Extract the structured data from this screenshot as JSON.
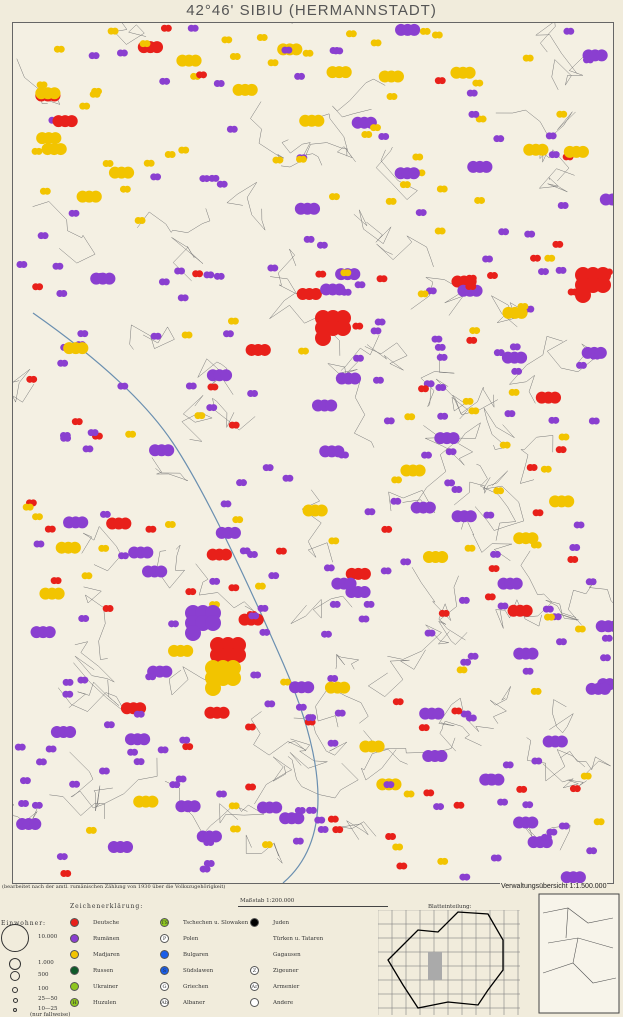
{
  "title": "42°46' SIBIU (HERMANNSTADT)",
  "note": "(bearbeitet nach der amtl. rumänischen Zählung von 1930 über die Volkszugehörigkeit)",
  "legend": {
    "heading": "Zeichenerklärung:",
    "population_heading": "Einwohner:",
    "sizes": [
      "10.000",
      "1.000",
      "500",
      "100",
      "25—50",
      "10—25",
      "(nur fallweise)"
    ],
    "groups": [
      {
        "label": "Deutsche",
        "color": "#e8201a",
        "mark": ""
      },
      {
        "label": "Rumänen",
        "color": "#8a3fd0",
        "mark": ""
      },
      {
        "label": "Madjaren",
        "color": "#f2c400",
        "mark": ""
      },
      {
        "label": "Russen",
        "color": "#0f5a2a",
        "mark": ""
      },
      {
        "label": "Ukrainer",
        "color": "#8ec61e",
        "mark": ""
      },
      {
        "label": "Huzulen",
        "color": "#8ec61e",
        "mark": "H"
      },
      {
        "label": "Tschechen u. Slowaken",
        "color": "#8ec61e",
        "mark": "TS"
      },
      {
        "label": "Polen",
        "color": "#ffffff",
        "mark": "P"
      },
      {
        "label": "Bulgaren",
        "color": "#1a5ee8",
        "mark": ""
      },
      {
        "label": "Südslawen",
        "color": "#1a5ee8",
        "mark": "S"
      },
      {
        "label": "Griechen",
        "color": "#ffffff",
        "mark": "G"
      },
      {
        "label": "Albaner",
        "color": "#ffffff",
        "mark": "Ab"
      },
      {
        "label": "Juden",
        "color": "#000000",
        "mark": ""
      },
      {
        "label": "Türken u. Tataren",
        "color": "",
        "mark": ""
      },
      {
        "label": "Gagausen",
        "color": "",
        "mark": ""
      },
      {
        "label": "Zigeuner",
        "color": "#ffffff",
        "mark": "Z"
      },
      {
        "label": "Armenier",
        "color": "#ffffff",
        "mark": "Ar"
      },
      {
        "label": "Andere",
        "color": "#ffffff",
        "mark": ""
      }
    ]
  },
  "scale": "Maßstab 1:200.000",
  "index_map": {
    "title": "Blatteinteilung:"
  },
  "admin_map": {
    "title": "Verwaltungsübersicht 1:1.500.000"
  }
}
